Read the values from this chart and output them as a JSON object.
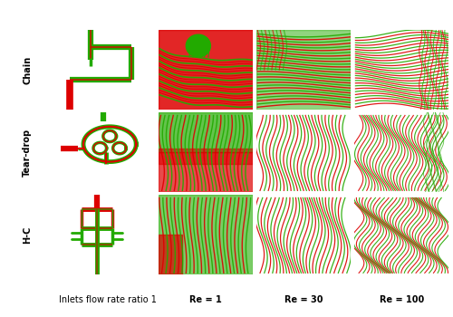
{
  "row_labels": [
    "Chain",
    "Tear-drop",
    "H-C"
  ],
  "col_labels": [
    "Inlets flow rate ratio 1",
    "Re = 1",
    "Re = 30",
    "Re = 100"
  ],
  "grid_rows": 3,
  "grid_cols": 4,
  "fig_width": 5.0,
  "fig_height": 3.5,
  "bg_color": "#ffffff",
  "colors": {
    "red": "#dd0000",
    "green": "#22aa00"
  },
  "row_label_fontsize": 7,
  "col_label_fontsize": 7
}
